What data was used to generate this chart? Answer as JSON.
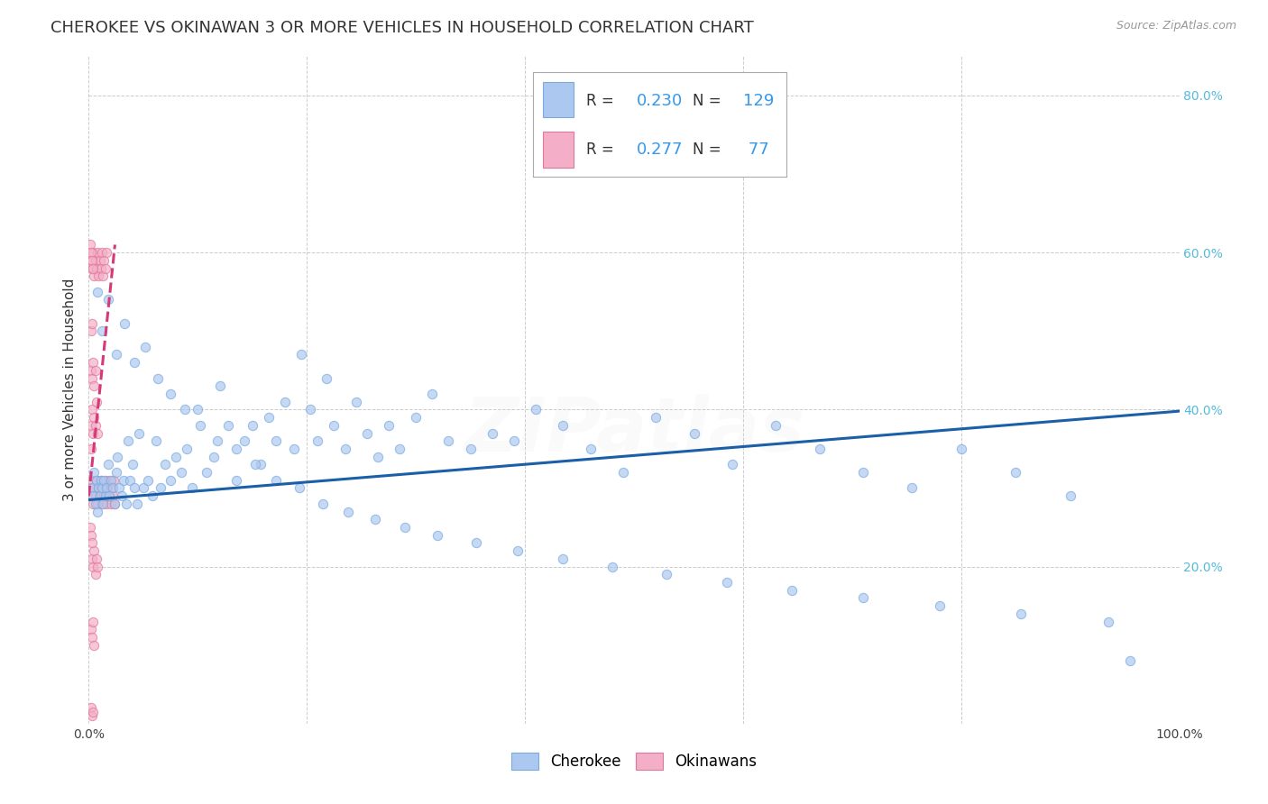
{
  "title": "CHEROKEE VS OKINAWAN 3 OR MORE VEHICLES IN HOUSEHOLD CORRELATION CHART",
  "source": "Source: ZipAtlas.com",
  "ylabel": "3 or more Vehicles in Household",
  "watermark": "ZIPatlas",
  "cherokee_R": "0.230",
  "cherokee_N": "129",
  "okinawan_R": "0.277",
  "okinawan_N": " 77",
  "cherokee_color": "#adc8f0",
  "cherokee_edge_color": "#7aaade",
  "cherokee_line_color": "#1a5fa8",
  "okinawan_color": "#f4aec8",
  "okinawan_edge_color": "#e07898",
  "okinawan_line_color": "#d63878",
  "legend_text_color": "#333333",
  "legend_value_color": "#3399ee",
  "right_tick_color": "#55bbdd",
  "background_color": "#ffffff",
  "grid_color": "#cccccc",
  "title_color": "#333333",
  "source_color": "#999999",
  "ylabel_color": "#333333",
  "watermark_color": "#dddddd",
  "cherokee_x": [
    0.003,
    0.004,
    0.005,
    0.006,
    0.007,
    0.008,
    0.009,
    0.01,
    0.011,
    0.012,
    0.013,
    0.014,
    0.015,
    0.016,
    0.018,
    0.019,
    0.02,
    0.022,
    0.024,
    0.025,
    0.026,
    0.028,
    0.03,
    0.032,
    0.034,
    0.036,
    0.038,
    0.04,
    0.042,
    0.044,
    0.046,
    0.05,
    0.054,
    0.058,
    0.062,
    0.066,
    0.07,
    0.075,
    0.08,
    0.085,
    0.09,
    0.095,
    0.1,
    0.108,
    0.115,
    0.12,
    0.128,
    0.135,
    0.143,
    0.15,
    0.158,
    0.165,
    0.172,
    0.18,
    0.188,
    0.195,
    0.203,
    0.21,
    0.218,
    0.225,
    0.235,
    0.245,
    0.255,
    0.265,
    0.275,
    0.285,
    0.3,
    0.315,
    0.33,
    0.35,
    0.37,
    0.39,
    0.41,
    0.435,
    0.46,
    0.49,
    0.52,
    0.555,
    0.59,
    0.63,
    0.67,
    0.71,
    0.755,
    0.8,
    0.85,
    0.9,
    0.955,
    0.008,
    0.012,
    0.018,
    0.025,
    0.033,
    0.042,
    0.052,
    0.063,
    0.075,
    0.088,
    0.102,
    0.118,
    0.135,
    0.153,
    0.172,
    0.193,
    0.215,
    0.238,
    0.263,
    0.29,
    0.32,
    0.355,
    0.393,
    0.435,
    0.48,
    0.53,
    0.585,
    0.645,
    0.71,
    0.78,
    0.855,
    0.935
  ],
  "cherokee_y": [
    0.3,
    0.29,
    0.32,
    0.28,
    0.31,
    0.27,
    0.3,
    0.29,
    0.31,
    0.3,
    0.28,
    0.31,
    0.29,
    0.3,
    0.33,
    0.29,
    0.31,
    0.3,
    0.28,
    0.32,
    0.34,
    0.3,
    0.29,
    0.31,
    0.28,
    0.36,
    0.31,
    0.33,
    0.3,
    0.28,
    0.37,
    0.3,
    0.31,
    0.29,
    0.36,
    0.3,
    0.33,
    0.31,
    0.34,
    0.32,
    0.35,
    0.3,
    0.4,
    0.32,
    0.34,
    0.43,
    0.38,
    0.31,
    0.36,
    0.38,
    0.33,
    0.39,
    0.36,
    0.41,
    0.35,
    0.47,
    0.4,
    0.36,
    0.44,
    0.38,
    0.35,
    0.41,
    0.37,
    0.34,
    0.38,
    0.35,
    0.39,
    0.42,
    0.36,
    0.35,
    0.37,
    0.36,
    0.4,
    0.38,
    0.35,
    0.32,
    0.39,
    0.37,
    0.33,
    0.38,
    0.35,
    0.32,
    0.3,
    0.35,
    0.32,
    0.29,
    0.08,
    0.55,
    0.5,
    0.54,
    0.47,
    0.51,
    0.46,
    0.48,
    0.44,
    0.42,
    0.4,
    0.38,
    0.36,
    0.35,
    0.33,
    0.31,
    0.3,
    0.28,
    0.27,
    0.26,
    0.25,
    0.24,
    0.23,
    0.22,
    0.21,
    0.2,
    0.19,
    0.18,
    0.17,
    0.16,
    0.15,
    0.14,
    0.13
  ],
  "okinawan_x": [
    0.001,
    0.002,
    0.003,
    0.004,
    0.005,
    0.006,
    0.007,
    0.008,
    0.009,
    0.01,
    0.011,
    0.012,
    0.013,
    0.014,
    0.015,
    0.016,
    0.017,
    0.018,
    0.019,
    0.02,
    0.021,
    0.022,
    0.023,
    0.024,
    0.002,
    0.003,
    0.004,
    0.005,
    0.006,
    0.007,
    0.008,
    0.009,
    0.01,
    0.011,
    0.012,
    0.013,
    0.014,
    0.015,
    0.016,
    0.002,
    0.003,
    0.004,
    0.005,
    0.006,
    0.007,
    0.008,
    0.003,
    0.004,
    0.005,
    0.006,
    0.007,
    0.008,
    0.002,
    0.003,
    0.004,
    0.005,
    0.006,
    0.002,
    0.003,
    0.004,
    0.005,
    0.002,
    0.003,
    0.004,
    0.002,
    0.003,
    0.002,
    0.001,
    0.002,
    0.003,
    0.004,
    0.001,
    0.002,
    0.003
  ],
  "okinawan_y": [
    0.3,
    0.29,
    0.31,
    0.28,
    0.3,
    0.29,
    0.31,
    0.28,
    0.3,
    0.29,
    0.31,
    0.28,
    0.3,
    0.29,
    0.31,
    0.28,
    0.3,
    0.29,
    0.31,
    0.28,
    0.3,
    0.29,
    0.31,
    0.28,
    0.59,
    0.58,
    0.6,
    0.57,
    0.59,
    0.58,
    0.6,
    0.57,
    0.59,
    0.58,
    0.6,
    0.57,
    0.59,
    0.58,
    0.6,
    0.38,
    0.4,
    0.37,
    0.39,
    0.38,
    0.41,
    0.37,
    0.21,
    0.2,
    0.22,
    0.19,
    0.21,
    0.2,
    0.45,
    0.44,
    0.46,
    0.43,
    0.45,
    0.12,
    0.11,
    0.13,
    0.1,
    0.02,
    0.01,
    0.015,
    0.5,
    0.51,
    0.35,
    0.61,
    0.6,
    0.59,
    0.58,
    0.25,
    0.24,
    0.23
  ],
  "xlim": [
    0.0,
    1.0
  ],
  "ylim": [
    0.0,
    0.85
  ],
  "xticks": [
    0.0,
    0.2,
    0.4,
    0.6,
    0.8,
    1.0
  ],
  "xticklabels": [
    "0.0%",
    "",
    "",
    "",
    "",
    "100.0%"
  ],
  "yticks_left": [
    0.0,
    0.2,
    0.4,
    0.6,
    0.8
  ],
  "yticklabels_left": [
    "",
    "",
    "",
    "",
    ""
  ],
  "right_yticks": [
    0.2,
    0.4,
    0.6,
    0.8
  ],
  "right_yticklabels": [
    "20.0%",
    "40.0%",
    "60.0%",
    "80.0%"
  ],
  "marker_size": 55,
  "marker_alpha": 0.7,
  "line_width": 2.2,
  "cherokee_trend_x0": 0.0,
  "cherokee_trend_y0": 0.285,
  "cherokee_trend_x1": 1.0,
  "cherokee_trend_y1": 0.398,
  "okinawan_trend_x0": 0.0,
  "okinawan_trend_y0": 0.29,
  "okinawan_trend_x1": 0.024,
  "okinawan_trend_y1": 0.61,
  "title_fontsize": 13,
  "source_fontsize": 9,
  "ylabel_fontsize": 11,
  "tick_fontsize": 10,
  "legend_fontsize": 13,
  "watermark_fontsize": 60,
  "watermark_alpha": 0.12
}
